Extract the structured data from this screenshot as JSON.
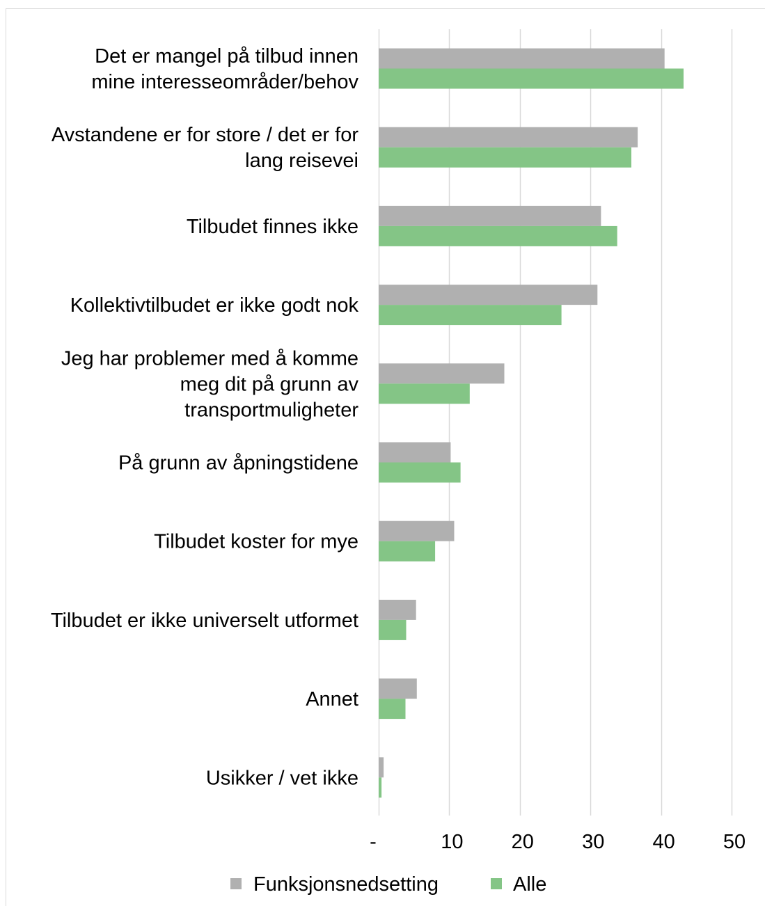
{
  "chart_data": {
    "type": "bar",
    "orientation": "horizontal",
    "categories": [
      "Det er mangel på tilbud innen mine interesseområder/behov",
      "Avstandene er for store / det er for lang reisevei",
      "Tilbudet finnes ikke",
      "Kollektivtilbudet er ikke godt nok",
      "Jeg har problemer med å komme meg dit på grunn av transportmuligheter",
      "På grunn av åpningstidene",
      "Tilbudet koster for mye",
      "Tilbudet er ikke universelt utformet",
      "Annet",
      "Usikker / vet ikke"
    ],
    "category_lines": [
      [
        "Det er mangel på tilbud innen",
        "mine interesseområder/behov"
      ],
      [
        "Avstandene er for store / det er for",
        "lang reisevei"
      ],
      [
        "Tilbudet finnes ikke"
      ],
      [
        "Kollektivtilbudet er ikke godt nok"
      ],
      [
        "Jeg har problemer med å komme",
        "meg dit på grunn av",
        "transportmuligheter"
      ],
      [
        "På grunn av åpningstidene"
      ],
      [
        "Tilbudet koster for mye"
      ],
      [
        "Tilbudet er ikke universelt utformet"
      ],
      [
        "Annet"
      ],
      [
        "Usikker / vet ikke"
      ]
    ],
    "series": [
      {
        "name": "Funksjonsnedsetting",
        "color": "#b0b0b0",
        "values": [
          40.5,
          36.7,
          31.5,
          31.0,
          17.8,
          10.2,
          10.7,
          5.3,
          5.4,
          0.7
        ]
      },
      {
        "name": "Alle",
        "color": "#84c586",
        "values": [
          43.2,
          35.8,
          33.8,
          25.9,
          12.9,
          11.6,
          8.0,
          3.9,
          3.8,
          0.4
        ]
      }
    ],
    "x_ticks": [
      "-",
      "10",
      "20",
      "30",
      "40",
      "50"
    ],
    "xlim": [
      0,
      50
    ],
    "grid": "vertical",
    "legend": "bottom"
  }
}
